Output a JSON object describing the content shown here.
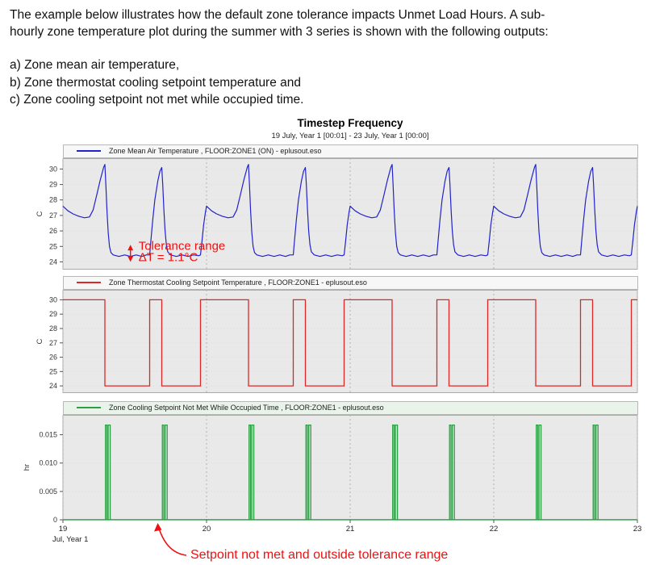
{
  "document": {
    "intro": "The example below illustrates how the default zone tolerance impacts Unmet Load Hours. A sub-\nhourly zone temperature plot during the summer with 3 series is shown with the following outputs:",
    "list": [
      "a) Zone mean air temperature,",
      "b) Zone thermostat cooling setpoint temperature and",
      "c) Zone cooling setpoint not met while occupied time."
    ]
  },
  "chart_data": {
    "type": "line",
    "title": "Timestep Frequency",
    "subtitle": "19 July, Year 1  [00:01] - 23 July, Year 1  [00:00]",
    "xlabel": "Jul, Year 1",
    "xlim": [
      19,
      23
    ],
    "xticks": [
      19,
      20,
      21,
      22,
      23
    ],
    "grid": "vertical-dotted",
    "legend_position": "top-strip",
    "panels": [
      {
        "legend": "Zone Mean Air Temperature , FLOOR:ZONE1 (ON) - eplusout.eso",
        "color": "#2222cc",
        "unit": "C",
        "ylim": [
          23.5,
          30.7
        ],
        "yticks": [
          24,
          25,
          26,
          27,
          28,
          29,
          30
        ],
        "ytick_labels": [
          "24",
          "25",
          "26",
          "27",
          "28",
          "29",
          "30"
        ],
        "series_days": [
          19,
          20,
          21,
          22
        ],
        "day_profile": [
          [
            0.0,
            27.6
          ],
          [
            0.035,
            27.3
          ],
          [
            0.07,
            27.1
          ],
          [
            0.11,
            26.95
          ],
          [
            0.15,
            26.85
          ],
          [
            0.185,
            26.9
          ],
          [
            0.21,
            27.35
          ],
          [
            0.235,
            28.3
          ],
          [
            0.26,
            29.3
          ],
          [
            0.283,
            30.1
          ],
          [
            0.292,
            30.3
          ],
          [
            0.299,
            29.0
          ],
          [
            0.307,
            27.3
          ],
          [
            0.315,
            25.9
          ],
          [
            0.324,
            25.0
          ],
          [
            0.334,
            24.6
          ],
          [
            0.35,
            24.45
          ],
          [
            0.39,
            24.35
          ],
          [
            0.43,
            24.45
          ],
          [
            0.47,
            24.35
          ],
          [
            0.51,
            24.45
          ],
          [
            0.55,
            24.35
          ],
          [
            0.58,
            24.45
          ],
          [
            0.604,
            24.45
          ],
          [
            0.612,
            25.3
          ],
          [
            0.625,
            26.7
          ],
          [
            0.64,
            28.0
          ],
          [
            0.66,
            29.2
          ],
          [
            0.675,
            29.85
          ],
          [
            0.688,
            30.1
          ],
          [
            0.695,
            29.0
          ],
          [
            0.703,
            27.4
          ],
          [
            0.711,
            26.0
          ],
          [
            0.72,
            25.1
          ],
          [
            0.73,
            24.65
          ],
          [
            0.75,
            24.45
          ],
          [
            0.79,
            24.35
          ],
          [
            0.83,
            24.45
          ],
          [
            0.87,
            24.35
          ],
          [
            0.91,
            24.45
          ],
          [
            0.945,
            24.4
          ],
          [
            0.958,
            24.45
          ],
          [
            0.968,
            25.3
          ],
          [
            0.98,
            26.4
          ],
          [
            0.992,
            27.2
          ],
          [
            1.0,
            27.6
          ]
        ]
      },
      {
        "legend": "Zone Thermostat Cooling Setpoint Temperature , FLOOR:ZONE1 - eplusout.eso",
        "color": "#dd2626",
        "unit": "C",
        "ylim": [
          23.5,
          30.7
        ],
        "yticks": [
          24,
          25,
          26,
          27,
          28,
          29,
          30
        ],
        "ytick_labels": [
          "24",
          "25",
          "26",
          "27",
          "28",
          "29",
          "30"
        ],
        "steps": [
          [
            19.0,
            30
          ],
          [
            19.292,
            24
          ],
          [
            19.604,
            30
          ],
          [
            19.688,
            24
          ],
          [
            19.958,
            30
          ],
          [
            20.292,
            24
          ],
          [
            20.604,
            30
          ],
          [
            20.688,
            24
          ],
          [
            20.958,
            30
          ],
          [
            21.292,
            24
          ],
          [
            21.604,
            30
          ],
          [
            21.688,
            24
          ],
          [
            21.958,
            30
          ],
          [
            22.292,
            24
          ],
          [
            22.604,
            30
          ],
          [
            22.688,
            24
          ],
          [
            22.958,
            30
          ],
          [
            23.0,
            30
          ]
        ]
      },
      {
        "legend": "Zone Cooling Setpoint Not Met While Occupied Time , FLOOR:ZONE1 - eplusout.eso",
        "color": "#2d9e46",
        "unit": "hr",
        "ylim": [
          0,
          0.0185
        ],
        "yticks": [
          0,
          0.005,
          0.01,
          0.015
        ],
        "ytick_labels": [
          "0",
          "0.005",
          "0.010",
          "0.015"
        ],
        "baseline": 0,
        "spikes": [
          [
            19.296,
            0.01,
            0.0167
          ],
          [
            19.315,
            0.014,
            0.0167
          ],
          [
            19.692,
            0.01,
            0.0167
          ],
          [
            19.712,
            0.014,
            0.0167
          ],
          [
            20.296,
            0.01,
            0.0167
          ],
          [
            20.315,
            0.014,
            0.0167
          ],
          [
            20.692,
            0.01,
            0.0167
          ],
          [
            20.712,
            0.014,
            0.0167
          ],
          [
            21.296,
            0.01,
            0.0167
          ],
          [
            21.315,
            0.014,
            0.0167
          ],
          [
            21.692,
            0.01,
            0.0167
          ],
          [
            21.712,
            0.014,
            0.0167
          ],
          [
            22.296,
            0.01,
            0.0167
          ],
          [
            22.315,
            0.014,
            0.0167
          ],
          [
            22.692,
            0.01,
            0.0167
          ],
          [
            22.712,
            0.014,
            0.0167
          ]
        ]
      }
    ],
    "annotations": {
      "tolerance": {
        "label_line1": "Tolerance range",
        "label_line2": "ΔT = 1.1°C",
        "x": 19.47,
        "y_from": 24.0,
        "y_to": 25.1,
        "color": "#ee1111"
      },
      "not_met": {
        "label": "Setpoint not met and outside tolerance range",
        "arrow_tip_x": 19.66,
        "color": "#ee1111"
      }
    }
  }
}
